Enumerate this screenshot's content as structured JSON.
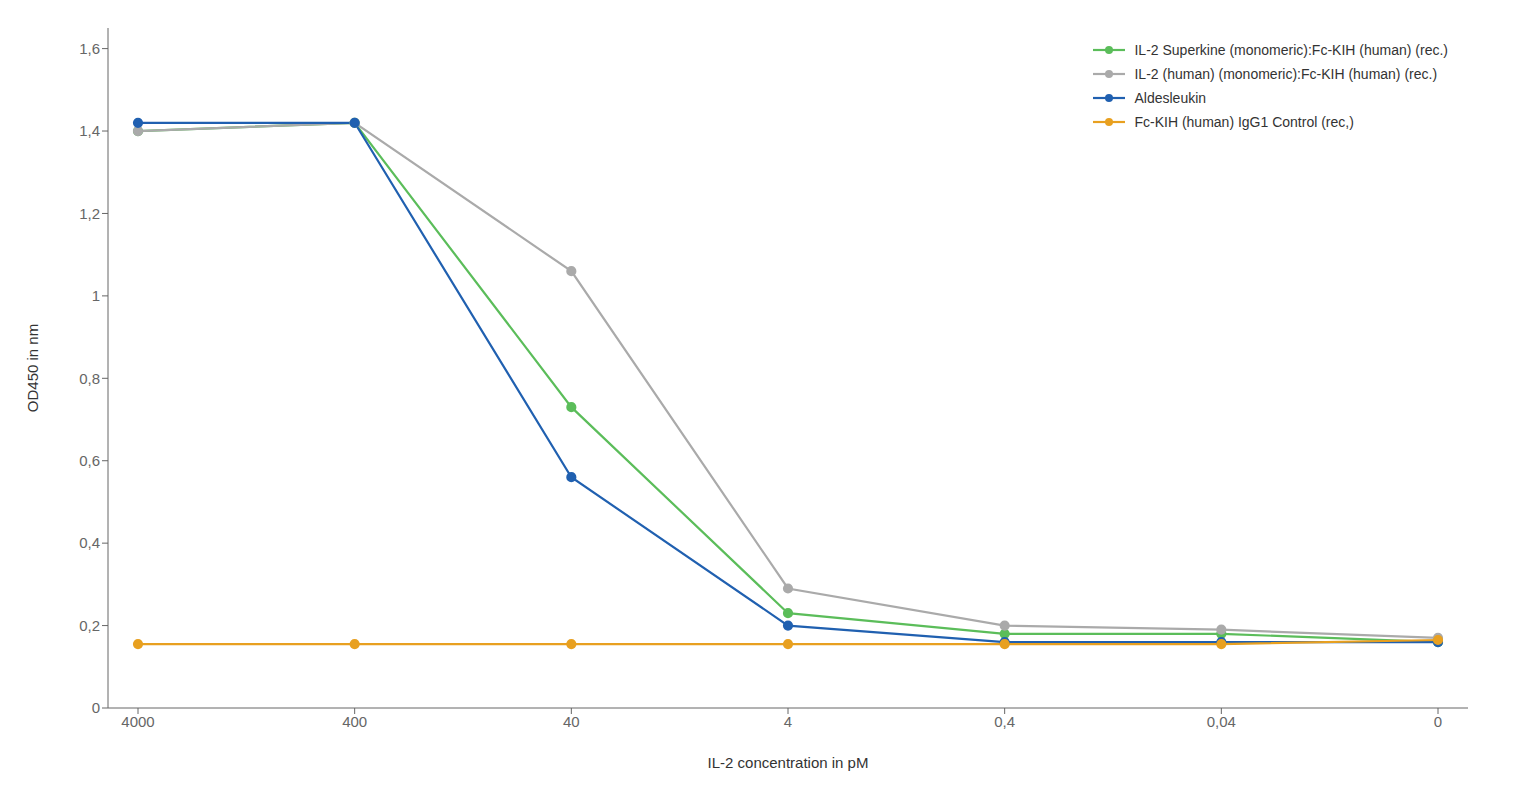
{
  "chart_data": {
    "type": "line",
    "xlabel": "IL-2 concentration in pM",
    "ylabel": "OD450 in nm",
    "categories": [
      "4000",
      "400",
      "40",
      "4",
      "0,4",
      "0,04",
      "0"
    ],
    "series": [
      {
        "name": "IL-2 Superkine (monomeric):Fc-KIH (human) (rec.)",
        "color": "#5BBD5A",
        "values": [
          1.4,
          1.42,
          0.73,
          0.23,
          0.18,
          0.18,
          0.16
        ]
      },
      {
        "name": "IL-2 (human) (monomeric):Fc-KIH (human) (rec.)",
        "color": "#AAAAAA",
        "values": [
          1.4,
          1.42,
          1.06,
          0.29,
          0.2,
          0.19,
          0.17
        ]
      },
      {
        "name": "Aldesleukin",
        "color": "#2060B0",
        "values": [
          1.42,
          1.42,
          0.56,
          0.2,
          0.16,
          0.16,
          0.16
        ]
      },
      {
        "name": "Fc-KIH (human) IgG1 Control (rec,)",
        "color": "#E8A020",
        "values": [
          0.155,
          0.155,
          0.155,
          0.155,
          0.155,
          0.155,
          0.165
        ]
      }
    ],
    "ylim": [
      0,
      1.65
    ],
    "yticks": [
      0,
      {
        "value": 0.2,
        "label": "0,2"
      },
      {
        "value": 0.4,
        "label": "0,4"
      },
      {
        "value": 0.6,
        "label": "0,6"
      },
      {
        "value": 0.8,
        "label": "0,8"
      },
      1,
      {
        "value": 1.2,
        "label": "1,2"
      },
      {
        "value": 1.4,
        "label": "1,4"
      },
      {
        "value": 1.6,
        "label": "1,6"
      }
    ],
    "grid": false,
    "legend": "upper right",
    "marker": "o"
  }
}
